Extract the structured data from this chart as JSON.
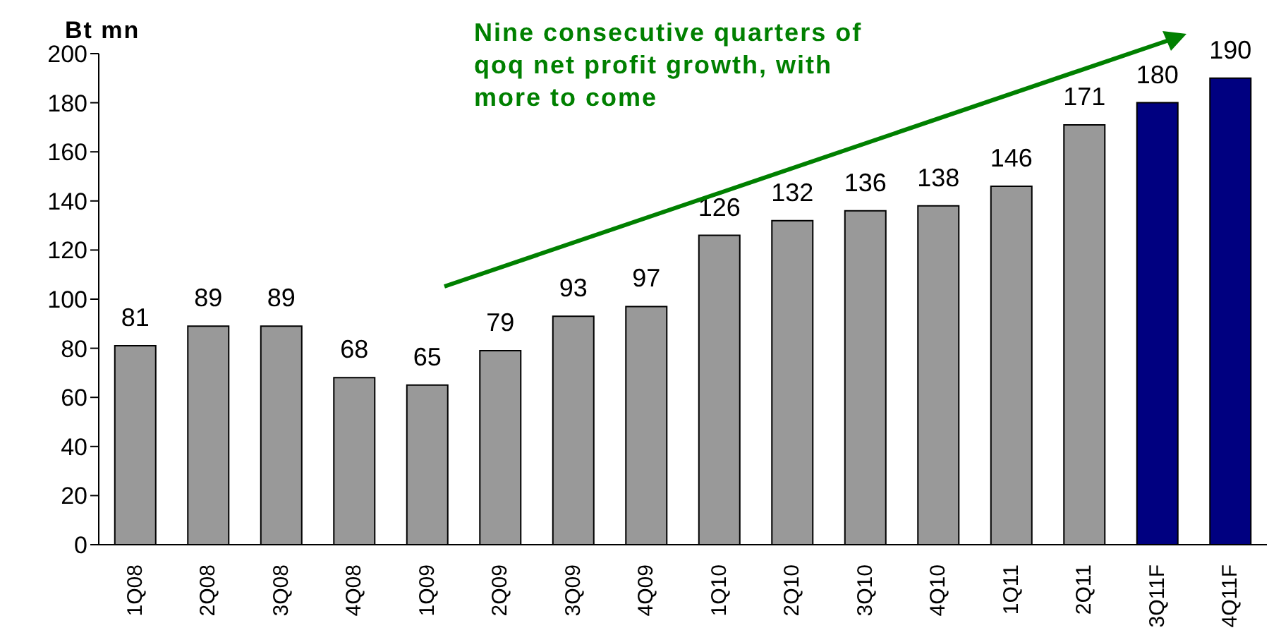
{
  "chart_data": {
    "type": "bar",
    "ylabel": "Bt mn",
    "annotations": [
      "Nine consecutive quarters of qoq net profit growth, with more to come"
    ],
    "categories": [
      "1Q08",
      "2Q08",
      "3Q08",
      "4Q08",
      "1Q09",
      "2Q09",
      "3Q09",
      "4Q09",
      "1Q10",
      "2Q10",
      "3Q10",
      "4Q10",
      "1Q11",
      "2Q11",
      "3Q11F",
      "4Q11F"
    ],
    "values": [
      81,
      89,
      89,
      68,
      65,
      79,
      93,
      97,
      126,
      132,
      136,
      138,
      146,
      171,
      180,
      190
    ],
    "colors": [
      "#999999",
      "#999999",
      "#999999",
      "#999999",
      "#999999",
      "#999999",
      "#999999",
      "#999999",
      "#999999",
      "#999999",
      "#999999",
      "#999999",
      "#999999",
      "#999999",
      "#000080",
      "#000080"
    ],
    "ylim": [
      0,
      200
    ],
    "yticks": [
      0,
      20,
      40,
      60,
      80,
      100,
      120,
      140,
      160,
      180,
      200
    ],
    "data_labels": true,
    "grid": false
  }
}
